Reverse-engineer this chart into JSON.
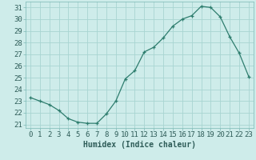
{
  "x": [
    0,
    1,
    2,
    3,
    4,
    5,
    6,
    7,
    8,
    9,
    10,
    11,
    12,
    13,
    14,
    15,
    16,
    17,
    18,
    19,
    20,
    21,
    22,
    23
  ],
  "y": [
    23.3,
    23.0,
    22.7,
    22.2,
    21.5,
    21.2,
    21.1,
    21.1,
    21.9,
    23.0,
    24.9,
    25.6,
    27.2,
    27.6,
    28.4,
    29.4,
    30.0,
    30.3,
    31.1,
    31.0,
    30.2,
    28.5,
    27.1,
    25.1
  ],
  "line_color": "#2e7d6e",
  "marker": "+",
  "background_color": "#ceecea",
  "grid_color": "#a8d5d2",
  "xlabel": "Humidex (Indice chaleur)",
  "ylabel_ticks": [
    21,
    22,
    23,
    24,
    25,
    26,
    27,
    28,
    29,
    30,
    31
  ],
  "ylim": [
    20.7,
    31.5
  ],
  "xlim": [
    -0.5,
    23.5
  ],
  "xtick_labels": [
    "0",
    "1",
    "2",
    "3",
    "4",
    "5",
    "6",
    "7",
    "8",
    "9",
    "10",
    "11",
    "12",
    "13",
    "14",
    "15",
    "16",
    "17",
    "18",
    "19",
    "20",
    "21",
    "22",
    "23"
  ],
  "xlabel_fontsize": 7,
  "tick_fontsize": 6.5
}
